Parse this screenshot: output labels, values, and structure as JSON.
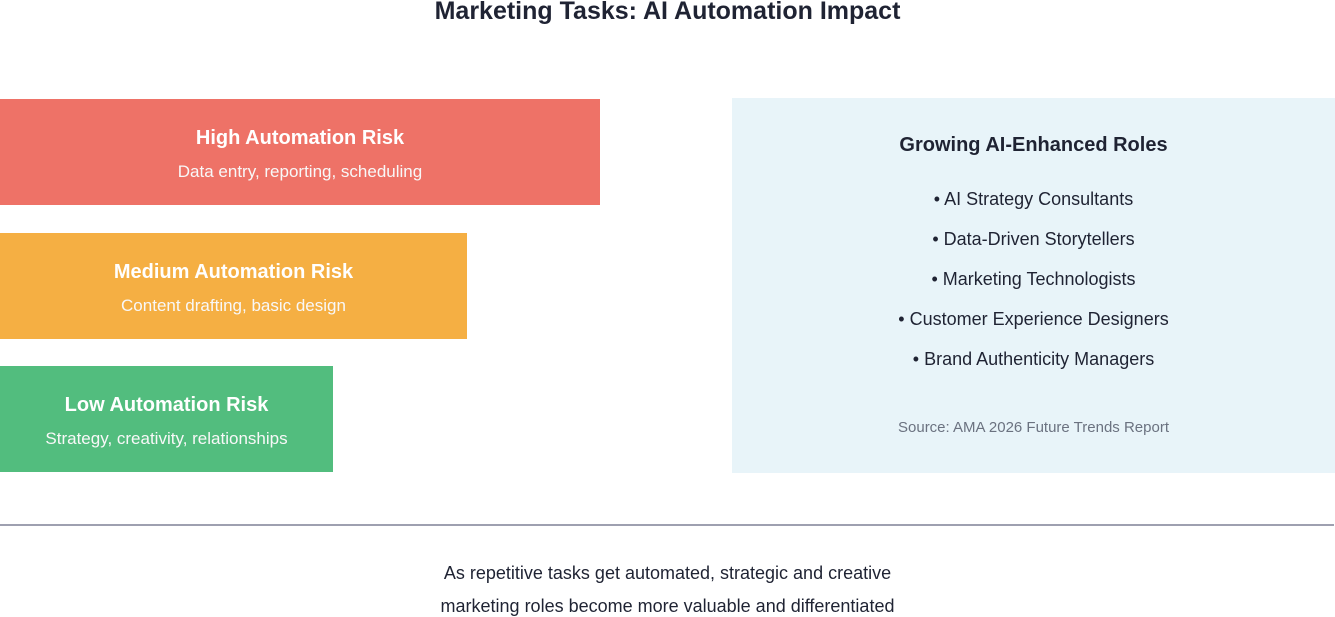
{
  "title": "Marketing Tasks: AI Automation Impact",
  "risk_levels": [
    {
      "heading": "High Automation Risk",
      "description": "Data entry, reporting, scheduling",
      "color": "#ee7267"
    },
    {
      "heading": "Medium Automation Risk",
      "description": "Content drafting, basic design",
      "color": "#f5af43"
    },
    {
      "heading": "Low Automation Risk",
      "description": "Strategy, creativity, relationships",
      "color": "#52bd7e"
    }
  ],
  "roles_panel": {
    "title": "Growing AI-Enhanced Roles",
    "items": [
      "• AI Strategy Consultants",
      "• Data-Driven Storytellers",
      "• Marketing Technologists",
      "• Customer Experience Designers",
      "• Brand Authenticity Managers"
    ],
    "source": "Source: AMA 2026 Future Trends Report",
    "background": "#e8f4f9"
  },
  "footer": {
    "line1": "As repetitive tasks get automated, strategic and creative",
    "line2": "marketing roles become more valuable and differentiated"
  }
}
